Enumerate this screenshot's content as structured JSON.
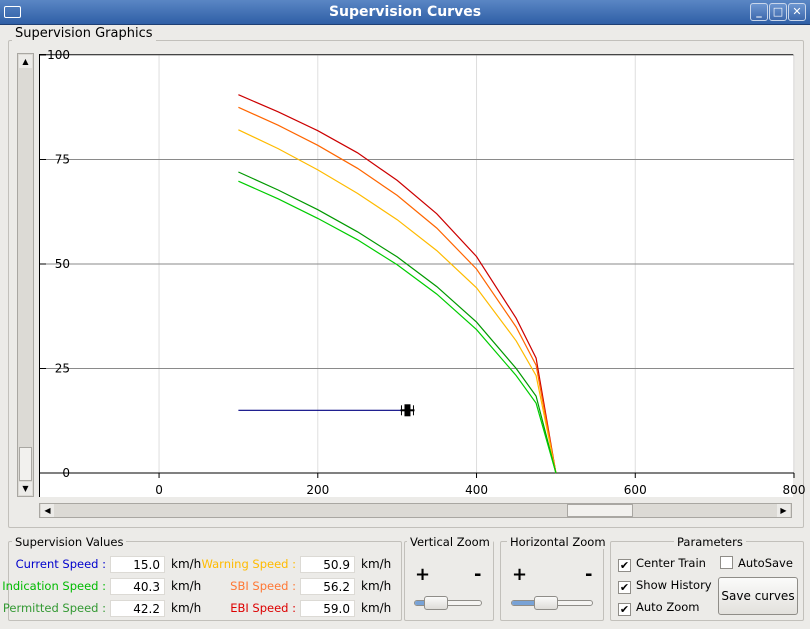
{
  "window": {
    "title": "Supervision Curves",
    "menu_icon": "window-menu-icon",
    "minimize": "_",
    "maximize": "□",
    "close": "✕"
  },
  "graphics": {
    "group_label": "Supervision Graphics"
  },
  "chart_data": {
    "type": "line",
    "xlim": [
      -150,
      800
    ],
    "ylim": [
      0,
      100
    ],
    "x_ticks": [
      "0",
      "200",
      "400",
      "600",
      "800"
    ],
    "y_ticks": [
      "0",
      "25",
      "50",
      "75",
      "100"
    ],
    "grid": true,
    "series": [
      {
        "color": "#cc0000",
        "x": [
          100,
          150,
          200,
          250,
          300,
          350,
          400,
          450,
          475,
          500
        ],
        "y": [
          90.5,
          86.4,
          81.9,
          76.6,
          70.0,
          62.0,
          51.8,
          37.0,
          27.5,
          0
        ]
      },
      {
        "color": "#ff6600",
        "x": [
          100,
          150,
          200,
          250,
          300,
          350,
          400,
          450,
          475,
          500
        ],
        "y": [
          87.5,
          83.2,
          78.4,
          72.9,
          66.4,
          58.6,
          48.8,
          34.9,
          25.8,
          0
        ]
      },
      {
        "color": "#ffbb00",
        "x": [
          100,
          150,
          200,
          250,
          300,
          350,
          400,
          450,
          475,
          500
        ],
        "y": [
          82.1,
          77.6,
          72.5,
          66.9,
          60.6,
          53.2,
          44.3,
          31.6,
          23.3,
          0
        ]
      },
      {
        "color": "#009900",
        "x": [
          100,
          150,
          200,
          250,
          300,
          350,
          400,
          450,
          475,
          500
        ],
        "y": [
          72.0,
          67.7,
          63.0,
          57.7,
          51.7,
          44.6,
          36.1,
          25.0,
          18.4,
          0
        ]
      },
      {
        "color": "#00cc00",
        "x": [
          100,
          150,
          200,
          250,
          300,
          350,
          400,
          450,
          475,
          500
        ],
        "y": [
          69.8,
          65.6,
          60.9,
          55.8,
          49.8,
          42.8,
          34.3,
          23.3,
          16.7,
          0
        ]
      },
      {
        "color": "#000080",
        "x": [
          100,
          310
        ],
        "y": [
          15,
          15
        ]
      }
    ],
    "train_marker": {
      "x": 313,
      "y": 15
    }
  },
  "values": {
    "group_label": "Supervision Values",
    "rows": [
      {
        "label": "Current Speed :",
        "value": "15.0",
        "unit": "km/h",
        "color": "#0000cc"
      },
      {
        "label": "Indication Speed :",
        "value": "40.3",
        "unit": "km/h",
        "color": "#00bb00"
      },
      {
        "label": "Permitted Speed :",
        "value": "42.2",
        "unit": "km/h",
        "color": "#339933"
      },
      {
        "label": "Warning Speed :",
        "value": "50.9",
        "unit": "km/h",
        "color": "#ffbb00"
      },
      {
        "label": "SBI Speed :",
        "value": "56.2",
        "unit": "km/h",
        "color": "#ff7733"
      },
      {
        "label": "EBI Speed :",
        "value": "59.0",
        "unit": "km/h",
        "color": "#dd0000"
      }
    ]
  },
  "vzoom": {
    "label": "Vertical Zoom",
    "plus": "+",
    "minus": "-",
    "level": 0.2
  },
  "hzoom": {
    "label": "Horizontal Zoom",
    "plus": "+",
    "minus": "-",
    "level": 0.38
  },
  "params": {
    "label": "Parameters",
    "center_train": {
      "label": "Center Train",
      "checked": true
    },
    "show_history": {
      "label": "Show History",
      "checked": true
    },
    "auto_zoom": {
      "label": "Auto Zoom",
      "checked": true
    },
    "autosave": {
      "label": "AutoSave",
      "checked": false
    },
    "save_button": "Save curves"
  }
}
